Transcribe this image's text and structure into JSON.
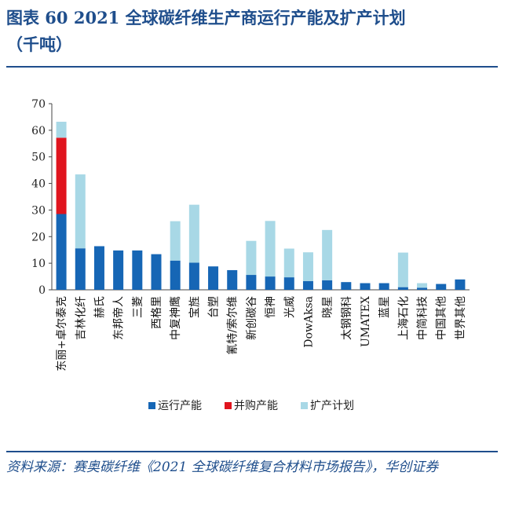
{
  "header": {
    "title": "图表 60   2021 全球碳纤维生产商运行产能及扩产计划",
    "subtitle": "（千吨）"
  },
  "source": "资料来源：赛奥碳纤维《2021 全球碳纤维复合材料市场报告》，华创证券",
  "colors": {
    "running": "#1666b5",
    "acquired": "#e0141e",
    "plan": "#a8d8e6",
    "title": "#1f4e8c"
  },
  "chart_data": {
    "type": "bar",
    "stacked": true,
    "ylim": [
      0,
      70
    ],
    "yticks": [
      0,
      10,
      20,
      30,
      40,
      50,
      60,
      70
    ],
    "categories": [
      "东丽+卓尔泰克",
      "吉林化纤",
      "赫氏",
      "东邦帝人",
      "三菱",
      "西格里",
      "中复神鹰",
      "宝旌",
      "台塑",
      "氰特/索尔维",
      "新创碳谷",
      "恒神",
      "光威",
      "DowAksa",
      "晓星",
      "太钢钢科",
      "UMATEX",
      "蓝星",
      "上海石化",
      "中简科技",
      "中国其他",
      "世界其他"
    ],
    "series": [
      {
        "name": "运行产能",
        "values": [
          28.5,
          15.6,
          16.4,
          14.8,
          14.8,
          13.4,
          11.0,
          10.2,
          8.8,
          7.4,
          5.6,
          5.0,
          4.7,
          3.3,
          3.6,
          2.9,
          2.5,
          2.5,
          1.0,
          0.8,
          2.2,
          3.9
        ]
      },
      {
        "name": "并购产能",
        "values": [
          28.7,
          0,
          0,
          0,
          0,
          0,
          0,
          0,
          0,
          0,
          0,
          0,
          0,
          0,
          0,
          0,
          0,
          0,
          0,
          0,
          0,
          0
        ]
      },
      {
        "name": "扩产计划",
        "values": [
          6.0,
          27.8,
          0,
          0,
          0,
          0,
          14.8,
          21.8,
          0,
          0,
          12.8,
          20.9,
          10.8,
          10.8,
          18.9,
          0,
          0,
          0,
          13.0,
          1.7,
          0,
          0
        ]
      }
    ],
    "legend": {
      "position": "bottom"
    }
  }
}
